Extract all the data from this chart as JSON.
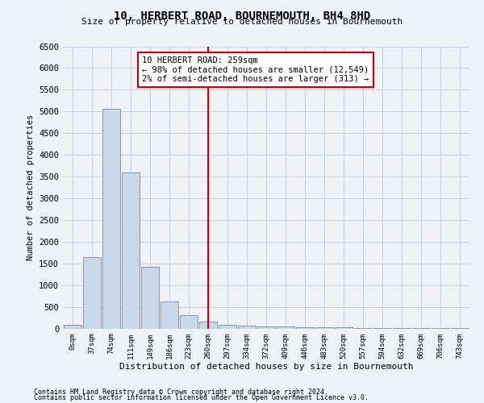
{
  "title": "10, HERBERT ROAD, BOURNEMOUTH, BH4 8HD",
  "subtitle": "Size of property relative to detached houses in Bournemouth",
  "xlabel": "Distribution of detached houses by size in Bournemouth",
  "ylabel": "Number of detached properties",
  "footnote1": "Contains HM Land Registry data © Crown copyright and database right 2024.",
  "footnote2": "Contains public sector information licensed under the Open Government Licence v3.0.",
  "bar_labels": [
    "0sqm",
    "37sqm",
    "74sqm",
    "111sqm",
    "149sqm",
    "186sqm",
    "223sqm",
    "260sqm",
    "297sqm",
    "334sqm",
    "372sqm",
    "409sqm",
    "446sqm",
    "483sqm",
    "520sqm",
    "557sqm",
    "594sqm",
    "632sqm",
    "669sqm",
    "706sqm",
    "743sqm"
  ],
  "bar_values": [
    75,
    1640,
    5060,
    3590,
    1420,
    620,
    300,
    160,
    90,
    65,
    55,
    45,
    35,
    25,
    20,
    15,
    10,
    8,
    5,
    3,
    2
  ],
  "bar_color": "#c8d8e8",
  "bar_edge_color": "#7090b0",
  "ylim": [
    0,
    6500
  ],
  "yticks": [
    0,
    500,
    1000,
    1500,
    2000,
    2500,
    3000,
    3500,
    4000,
    4500,
    5000,
    5500,
    6000,
    6500
  ],
  "vline_x": 7,
  "vline_color": "#cc0000",
  "annotation_line1": "10 HERBERT ROAD: 259sqm",
  "annotation_line2": "← 98% of detached houses are smaller (12,549)",
  "annotation_line3": "2% of semi-detached houses are larger (313) →",
  "bg_color": "#eef2f7",
  "grid_color": "#c5cfe0"
}
